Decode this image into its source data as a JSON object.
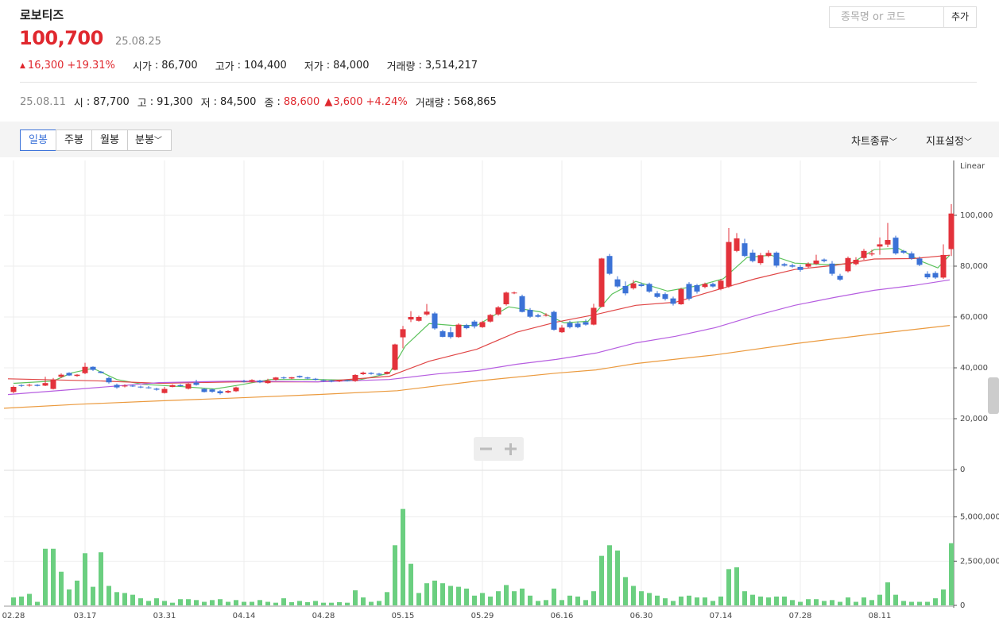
{
  "header": {
    "name": "로보티즈",
    "price": "100,700",
    "date": "25.08.25",
    "change": "16,300",
    "change_pct": "+19.31%",
    "stats": [
      {
        "label": "시가",
        "value": "86,700"
      },
      {
        "label": "고가",
        "value": "104,400"
      },
      {
        "label": "저가",
        "value": "84,000"
      },
      {
        "label": "거래량",
        "value": "3,514,217"
      }
    ]
  },
  "detail": {
    "date": "25.08.11",
    "stats": [
      {
        "label": "시",
        "value": "87,700"
      },
      {
        "label": "고",
        "value": "91,300"
      },
      {
        "label": "저",
        "value": "84,500"
      },
      {
        "label": "종",
        "value": "88,600"
      }
    ],
    "change": "3,600",
    "change_pct": "+4.24%",
    "volume_label": "거래량",
    "volume": "568,865"
  },
  "search": {
    "placeholder": "종목명 or 코드",
    "button": "추가"
  },
  "toolbar": {
    "periods": [
      "일봉",
      "주봉",
      "월봉",
      "분봉"
    ],
    "menus": [
      "차트종류",
      "지표설정"
    ]
  },
  "chart_data": {
    "type": "candlestick",
    "scale_label": "Linear",
    "grid": true,
    "up_color": "#e3323b",
    "down_color": "#3b72d6",
    "volume_color": "#6bcf80",
    "categories": [
      "02.28",
      null,
      null,
      null,
      null,
      null,
      null,
      null,
      null,
      "03.17",
      null,
      null,
      null,
      null,
      null,
      null,
      null,
      null,
      null,
      "03.31",
      null,
      null,
      null,
      null,
      null,
      null,
      null,
      null,
      null,
      "04.14",
      null,
      null,
      null,
      null,
      null,
      null,
      null,
      null,
      null,
      "04.28",
      null,
      null,
      null,
      null,
      null,
      null,
      null,
      null,
      null,
      "05.15",
      null,
      null,
      null,
      null,
      null,
      null,
      null,
      null,
      null,
      "05.29",
      null,
      null,
      null,
      null,
      null,
      null,
      null,
      null,
      null,
      "06.16",
      null,
      null,
      null,
      null,
      null,
      null,
      null,
      null,
      null,
      "06.30",
      null,
      null,
      null,
      null,
      null,
      null,
      null,
      null,
      null,
      "07.14",
      null,
      null,
      null,
      null,
      null,
      null,
      null,
      null,
      null,
      "07.28",
      null,
      null,
      null,
      null,
      null,
      null,
      null,
      null,
      null,
      "08.11",
      null,
      null,
      null,
      null,
      null,
      null,
      null,
      null,
      null
    ],
    "ohlc": [
      [
        30500,
        33000,
        30000,
        32500
      ],
      [
        33200,
        33500,
        32500,
        33000
      ],
      [
        33000,
        33800,
        32600,
        33300
      ],
      [
        33300,
        33600,
        32700,
        32900
      ],
      [
        33000,
        36500,
        32800,
        34000
      ],
      [
        31700,
        36000,
        31500,
        35400
      ],
      [
        36500,
        37800,
        36000,
        37300
      ],
      [
        38000,
        38300,
        36800,
        37000
      ],
      [
        36800,
        37500,
        36500,
        37300
      ],
      [
        37900,
        42000,
        37500,
        40400
      ],
      [
        40400,
        40600,
        38800,
        39200
      ],
      [
        38500,
        38800,
        37800,
        38000
      ],
      [
        36000,
        36500,
        33800,
        34300
      ],
      [
        33300,
        33800,
        31800,
        32300
      ],
      [
        32800,
        33500,
        32300,
        33000
      ],
      [
        33000,
        33400,
        32500,
        32800
      ],
      [
        32600,
        33000,
        32000,
        32400
      ],
      [
        32300,
        32800,
        31800,
        32000
      ],
      [
        31800,
        32200,
        31000,
        31400
      ],
      [
        30100,
        32500,
        29900,
        31700
      ],
      [
        32500,
        33500,
        32300,
        33200
      ],
      [
        33200,
        33600,
        32600,
        32800
      ],
      [
        31800,
        34000,
        31500,
        33700
      ],
      [
        34200,
        35300,
        33000,
        33300
      ],
      [
        31700,
        32000,
        30300,
        30500
      ],
      [
        31500,
        31800,
        30200,
        30600
      ],
      [
        30800,
        31300,
        29500,
        30000
      ],
      [
        30300,
        31200,
        30000,
        30900
      ],
      [
        30800,
        32600,
        30500,
        32300
      ],
      [
        34800,
        35300,
        34200,
        34500
      ],
      [
        34700,
        35500,
        34200,
        35200
      ],
      [
        35000,
        35300,
        34000,
        34300
      ],
      [
        34000,
        35700,
        33800,
        35000
      ],
      [
        35300,
        36400,
        35000,
        36200
      ],
      [
        36200,
        36600,
        35600,
        36000
      ],
      [
        35800,
        36400,
        35500,
        36300
      ],
      [
        36800,
        37000,
        36000,
        36300
      ],
      [
        36200,
        36500,
        35500,
        35800
      ],
      [
        35700,
        36000,
        35000,
        35300
      ],
      [
        35100,
        35500,
        34500,
        34800
      ],
      [
        35000,
        35300,
        34300,
        34600
      ],
      [
        34700,
        35200,
        34400,
        35000
      ],
      [
        35000,
        35400,
        34600,
        34900
      ],
      [
        34800,
        37500,
        34500,
        37200
      ],
      [
        37500,
        38500,
        37200,
        38100
      ],
      [
        38000,
        38300,
        37300,
        37600
      ],
      [
        37700,
        38000,
        37000,
        37300
      ],
      [
        37600,
        38600,
        37400,
        38400
      ],
      [
        39200,
        49500,
        39000,
        49200
      ],
      [
        52000,
        56500,
        47700,
        55200
      ],
      [
        59000,
        62300,
        58000,
        60000
      ],
      [
        58500,
        60500,
        58200,
        60000
      ],
      [
        61000,
        65100,
        60500,
        62100
      ],
      [
        61400,
        62000,
        55000,
        55500
      ],
      [
        54400,
        55000,
        52000,
        52200
      ],
      [
        54000,
        56000,
        51500,
        52100
      ],
      [
        52100,
        57500,
        51800,
        57000
      ],
      [
        56800,
        57300,
        55200,
        55600
      ],
      [
        58200,
        58800,
        55500,
        56300
      ],
      [
        56000,
        58500,
        55700,
        58000
      ],
      [
        58200,
        61200,
        57800,
        60800
      ],
      [
        61000,
        64300,
        60500,
        63800
      ],
      [
        65000,
        70000,
        64500,
        69600
      ],
      [
        69300,
        70000,
        69000,
        69600
      ],
      [
        68200,
        68800,
        61800,
        62000
      ],
      [
        62800,
        63500,
        59700,
        60100
      ],
      [
        60700,
        61300,
        59800,
        60100
      ],
      [
        60500,
        61500,
        60200,
        60800
      ],
      [
        62000,
        62500,
        54600,
        55000
      ],
      [
        54000,
        56800,
        53700,
        55800
      ],
      [
        57700,
        58500,
        55500,
        56000
      ],
      [
        57400,
        58300,
        55600,
        56000
      ],
      [
        58000,
        59000,
        56600,
        57000
      ],
      [
        57000,
        65200,
        56700,
        63600
      ],
      [
        64000,
        83300,
        63800,
        83000
      ],
      [
        84000,
        84800,
        76500,
        77000
      ],
      [
        74800,
        76000,
        71500,
        72000
      ],
      [
        72200,
        74000,
        68500,
        69300
      ],
      [
        71300,
        74500,
        70800,
        73200
      ],
      [
        72800,
        73500,
        71800,
        72200
      ],
      [
        73000,
        73500,
        69500,
        70000
      ],
      [
        69300,
        70200,
        67500,
        67900
      ],
      [
        69000,
        69600,
        66500,
        67100
      ],
      [
        67300,
        68000,
        64500,
        65200
      ],
      [
        65000,
        71500,
        64800,
        71000
      ],
      [
        73000,
        73700,
        66500,
        67200
      ],
      [
        72500,
        73000,
        69200,
        70000
      ],
      [
        71800,
        73500,
        71300,
        73000
      ],
      [
        73000,
        73500,
        71600,
        72000
      ],
      [
        71000,
        75000,
        70500,
        74300
      ],
      [
        72000,
        95000,
        71500,
        89500
      ],
      [
        86000,
        93000,
        85500,
        90900
      ],
      [
        89000,
        90800,
        83500,
        84000
      ],
      [
        85300,
        86500,
        81500,
        82000
      ],
      [
        81200,
        85200,
        80500,
        84300
      ],
      [
        84000,
        86200,
        83500,
        85200
      ],
      [
        85300,
        85800,
        79500,
        80200
      ],
      [
        80800,
        81300,
        79800,
        80200
      ],
      [
        80300,
        81000,
        79400,
        79800
      ],
      [
        79700,
        80500,
        77800,
        78500
      ],
      [
        79800,
        81500,
        79200,
        80900
      ],
      [
        80900,
        84500,
        80500,
        82200
      ],
      [
        82600,
        83000,
        81500,
        82000
      ],
      [
        81000,
        82000,
        76300,
        77000
      ],
      [
        76200,
        77000,
        74200,
        74700
      ],
      [
        78000,
        83800,
        77500,
        83200
      ],
      [
        80800,
        83500,
        80300,
        82500
      ],
      [
        83200,
        86800,
        82500,
        86000
      ],
      [
        84600,
        86500,
        84000,
        85000
      ],
      [
        87700,
        91300,
        84500,
        88600
      ],
      [
        88500,
        97000,
        87500,
        90300
      ],
      [
        91200,
        92000,
        84500,
        85000
      ],
      [
        86000,
        86400,
        84800,
        85300
      ],
      [
        85000,
        85800,
        82500,
        83000
      ],
      [
        83000,
        83800,
        80000,
        80500
      ],
      [
        77000,
        78000,
        75000,
        75600
      ],
      [
        77300,
        78000,
        75000,
        75500
      ],
      [
        75500,
        88600,
        75000,
        84400
      ],
      [
        86700,
        104400,
        84000,
        100700
      ]
    ],
    "ylim": [
      0,
      120000
    ],
    "yticks": [
      0,
      {
        "value": 20000,
        "label": "20,000"
      },
      {
        "value": 40000,
        "label": "40,000"
      },
      {
        "value": 60000,
        "label": "60,000"
      },
      {
        "value": 80000,
        "label": "80,000"
      },
      {
        "value": 100000,
        "label": "100,000"
      }
    ],
    "volume": [
      450000,
      500000,
      650000,
      200000,
      3200000,
      3200000,
      1900000,
      900000,
      1400000,
      2950000,
      1050000,
      3000000,
      1100000,
      750000,
      700000,
      600000,
      400000,
      250000,
      400000,
      250000,
      150000,
      350000,
      350000,
      300000,
      200000,
      300000,
      350000,
      200000,
      300000,
      200000,
      200000,
      300000,
      200000,
      150000,
      400000,
      180000,
      250000,
      180000,
      250000,
      150000,
      150000,
      180000,
      150000,
      850000,
      450000,
      200000,
      250000,
      750000,
      3400000,
      5450000,
      2350000,
      700000,
      1250000,
      1400000,
      1250000,
      1100000,
      1050000,
      950000,
      550000,
      700000,
      500000,
      800000,
      1150000,
      800000,
      950000,
      550000,
      250000,
      300000,
      950000,
      300000,
      550000,
      500000,
      300000,
      800000,
      2800000,
      3400000,
      3100000,
      1600000,
      1100000,
      800000,
      700000,
      550000,
      400000,
      250000,
      500000,
      550000,
      450000,
      450000,
      250000,
      500000,
      2050000,
      2150000,
      800000,
      600000,
      500000,
      450000,
      500000,
      500000,
      300000,
      200000,
      350000,
      350000,
      250000,
      300000,
      200000,
      450000,
      200000,
      450000,
      300000,
      600000,
      1300000,
      600000,
      250000,
      200000,
      200000,
      200000,
      400000,
      900000,
      3514217
    ],
    "volume_ylim": [
      0,
      7500000
    ],
    "volume_yticks": [
      0,
      {
        "value": 2500000,
        "label": "2,500,000"
      },
      {
        "value": 5000000,
        "label": "5,000,000"
      }
    ],
    "moving_averages": [
      {
        "color": "#5cc25c",
        "x": [
          0,
          5,
          7.3,
          10,
          13,
          16.3,
          21.3,
          25.3,
          28.3,
          32.3,
          38.3,
          43.3,
          47.3,
          49.3,
          52.3,
          55.3,
          58.3,
          62.3,
          66.3,
          69.3,
          72.3,
          75.3,
          78.3,
          82.3,
          86.3,
          89.3,
          92.3,
          95.3,
          98.3,
          102.3,
          105.3,
          108.3,
          111.3,
          114.3,
          116.3,
          117.8
        ],
        "values": [
          33900,
          34800,
          38000,
          39800,
          35400,
          33500,
          32600,
          31700,
          33200,
          35400,
          35400,
          35100,
          37900,
          48600,
          57400,
          56700,
          56700,
          64000,
          62000,
          57700,
          58300,
          69000,
          74000,
          70200,
          72400,
          75000,
          83400,
          84300,
          81200,
          80600,
          80900,
          86500,
          87100,
          81800,
          79300,
          84300
        ]
      },
      {
        "color": "#e04646",
        "x": [
          -0.7,
          11.3,
          18.3,
          28.3,
          38.3,
          47.3,
          52.3,
          58.3,
          63.3,
          68.3,
          73.3,
          78.3,
          83.3,
          88.3,
          93.3,
          98.3,
          103.3,
          108.3,
          113.3,
          117.8
        ],
        "values": [
          35700,
          34800,
          33900,
          34500,
          34500,
          36700,
          42600,
          47300,
          54000,
          58000,
          61000,
          64600,
          65800,
          70500,
          75000,
          78700,
          80300,
          82800,
          83000,
          84300
        ]
      },
      {
        "color": "#b65ee0",
        "x": [
          -0.7,
          8.3,
          18.3,
          28.3,
          38.3,
          47.3,
          53.3,
          58.3,
          63.3,
          68.3,
          73.3,
          78.3,
          83.3,
          88.3,
          93.3,
          98.3,
          103.3,
          108.3,
          113.3,
          117.8
        ],
        "values": [
          29500,
          31700,
          34200,
          34800,
          34500,
          35400,
          37600,
          38900,
          41400,
          43300,
          45800,
          49800,
          52400,
          55800,
          60500,
          64600,
          67700,
          70500,
          72400,
          74600
        ]
      },
      {
        "color": "#eb9a3e",
        "x": [
          -1.2,
          8.3,
          18.3,
          28.3,
          38.3,
          48.3,
          58.3,
          68.3,
          73.3,
          78.3,
          88.3,
          98.3,
          108.3,
          117.8
        ],
        "values": [
          24100,
          25700,
          27000,
          28200,
          29500,
          31000,
          34800,
          37900,
          39200,
          41700,
          45100,
          49500,
          53300,
          56700
        ]
      }
    ]
  }
}
